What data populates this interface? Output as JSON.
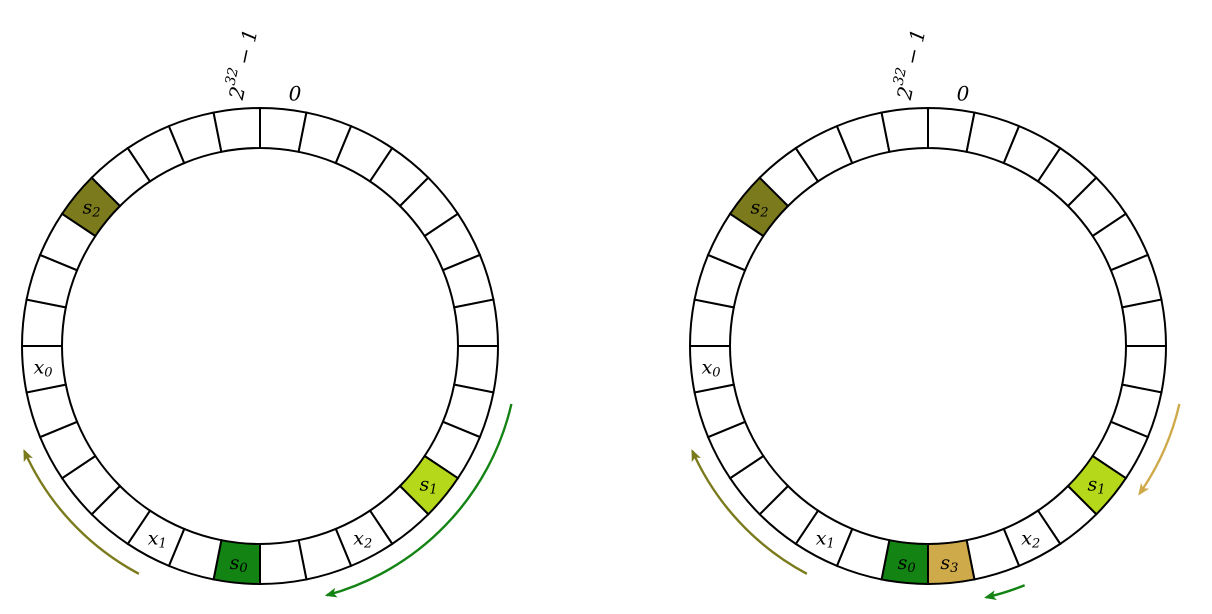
{
  "figures": [
    {
      "id": "left",
      "zero_label": "0",
      "max_label_base": "2",
      "max_label_exp": "32",
      "max_label_rest": "− 1",
      "servers": [
        {
          "slot": 11,
          "symbol": "s",
          "sub": "1",
          "color": "#b5d91a"
        },
        {
          "slot": 27,
          "symbol": "s",
          "sub": "2",
          "color": "#7b7a1c"
        },
        {
          "slot": 16,
          "symbol": "s",
          "sub": "0",
          "color": "#138313"
        }
      ],
      "keys": [
        {
          "slot": 13,
          "symbol": "x",
          "sub": "2"
        },
        {
          "slot": 18,
          "symbol": "x",
          "sub": "1"
        },
        {
          "slot": 23,
          "symbol": "x",
          "sub": "0"
        }
      ],
      "arrows": [
        {
          "from_deg": 103,
          "to_deg": 165,
          "color": "#138313",
          "meaning": "keys x1, x2 map clockwise to s0"
        },
        {
          "from_deg": 208,
          "to_deg": 246,
          "color": "#7b7a1c",
          "meaning": "key x0 maps clockwise to s2"
        }
      ]
    },
    {
      "id": "right",
      "zero_label": "0",
      "max_label_base": "2",
      "max_label_exp": "32",
      "max_label_rest": "− 1",
      "servers": [
        {
          "slot": 11,
          "symbol": "s",
          "sub": "1",
          "color": "#b5d91a"
        },
        {
          "slot": 27,
          "symbol": "s",
          "sub": "2",
          "color": "#7b7a1c"
        },
        {
          "slot": 16,
          "symbol": "s",
          "sub": "0",
          "color": "#138313"
        },
        {
          "slot": 15,
          "symbol": "s",
          "sub": "3",
          "color": "#cfaa4b"
        }
      ],
      "keys": [
        {
          "slot": 13,
          "symbol": "x",
          "sub": "2"
        },
        {
          "slot": 18,
          "symbol": "x",
          "sub": "1"
        },
        {
          "slot": 23,
          "symbol": "x",
          "sub": "0"
        }
      ],
      "arrows": [
        {
          "from_deg": 103,
          "to_deg": 125,
          "color": "#cfaa4b",
          "meaning": "key x2 now maps to s3"
        },
        {
          "from_deg": 158,
          "to_deg": 167,
          "color": "#138313",
          "meaning": "key x1 maps to s0"
        },
        {
          "from_deg": 208,
          "to_deg": 246,
          "color": "#7b7a1c",
          "meaning": "key x0 maps to s2"
        }
      ]
    }
  ],
  "slot_count": 32
}
